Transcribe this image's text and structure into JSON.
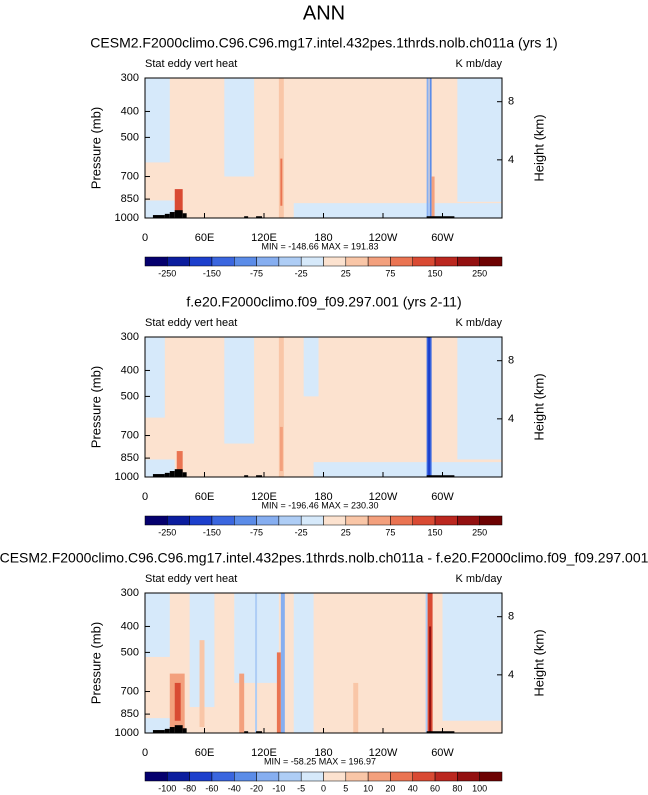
{
  "title": "ANN",
  "chart_data": [
    {
      "type": "contour",
      "title": "CESM2.F2000climo.C96.C96.mg17.intel.432pes.1thrds.nolb.ch011a (yrs 1)",
      "left_label": "Stat eddy vert heat",
      "right_label": "K mb/day",
      "ylabel": "Pressure (mb)",
      "y2label": "Height (km)",
      "yscale": "log",
      "ylim": [
        1000,
        300
      ],
      "yticks": [
        300,
        400,
        500,
        700,
        850,
        1000
      ],
      "y2lim": [
        0,
        9.63
      ],
      "y2ticks": [
        4,
        8
      ],
      "xlim": [
        0,
        360
      ],
      "xticks": [
        0,
        {
          "value": 60,
          "label": "60E"
        },
        {
          "value": 120,
          "label": "120E"
        },
        180,
        {
          "value": 240,
          "label": "120W"
        },
        {
          "value": 300,
          "label": "60W"
        }
      ],
      "stats": "MIN = -148.66  MAX = 191.83",
      "colorbar": {
        "colors": [
          "#05006e",
          "#0b1d9e",
          "#1c3fcc",
          "#3a66df",
          "#5b8ce8",
          "#86aef0",
          "#aecdf5",
          "#d6e9fa",
          "#fce2cf",
          "#f9c6a7",
          "#f3a07d",
          "#ea7452",
          "#d94a33",
          "#bb271f",
          "#931010",
          "#6d0202"
        ],
        "labels": [
          -250,
          -150,
          -75,
          -25,
          25,
          75,
          150,
          250
        ],
        "label_every": 2
      }
    },
    {
      "type": "contour",
      "title": "f.e20.F2000climo.f09_f09.297.001 (yrs 2-11)",
      "left_label": "Stat eddy vert heat",
      "right_label": "K mb/day",
      "ylabel": "Pressure (mb)",
      "y2label": "Height (km)",
      "yscale": "log",
      "ylim": [
        1000,
        300
      ],
      "yticks": [
        300,
        400,
        500,
        700,
        850,
        1000
      ],
      "y2lim": [
        0,
        9.63
      ],
      "y2ticks": [
        4,
        8
      ],
      "xlim": [
        0,
        360
      ],
      "xticks": [
        0,
        {
          "value": 60,
          "label": "60E"
        },
        {
          "value": 120,
          "label": "120E"
        },
        180,
        {
          "value": 240,
          "label": "120W"
        },
        {
          "value": 300,
          "label": "60W"
        }
      ],
      "stats": "MIN = -196.46  MAX = 230.30",
      "colorbar": {
        "colors": [
          "#05006e",
          "#0b1d9e",
          "#1c3fcc",
          "#3a66df",
          "#5b8ce8",
          "#86aef0",
          "#aecdf5",
          "#d6e9fa",
          "#fce2cf",
          "#f9c6a7",
          "#f3a07d",
          "#ea7452",
          "#d94a33",
          "#bb271f",
          "#931010",
          "#6d0202"
        ],
        "labels": [
          -250,
          -150,
          -75,
          -25,
          25,
          75,
          150,
          250
        ],
        "label_every": 2
      }
    },
    {
      "type": "contour",
      "title": "CESM2.F2000climo.C96.C96.mg17.intel.432pes.1thrds.nolb.ch011a - f.e20.F2000climo.f09_f09.297.001",
      "left_label": "Stat eddy vert heat",
      "right_label": "K mb/day",
      "ylabel": "Pressure (mb)",
      "y2label": "Height (km)",
      "yscale": "log",
      "ylim": [
        1000,
        300
      ],
      "yticks": [
        300,
        400,
        500,
        700,
        850,
        1000
      ],
      "y2lim": [
        0,
        9.63
      ],
      "y2ticks": [
        4,
        8
      ],
      "xlim": [
        0,
        360
      ],
      "xticks": [
        0,
        {
          "value": 60,
          "label": "60E"
        },
        {
          "value": 120,
          "label": "120E"
        },
        180,
        {
          "value": 240,
          "label": "120W"
        },
        {
          "value": 300,
          "label": "60W"
        }
      ],
      "stats": "MIN = -58.25  MAX = 196.97",
      "colorbar": {
        "colors": [
          "#05006e",
          "#0b1d9e",
          "#1c3fcc",
          "#3a66df",
          "#5b8ce8",
          "#86aef0",
          "#aecdf5",
          "#d6e9fa",
          "#fce2cf",
          "#f9c6a7",
          "#f3a07d",
          "#ea7452",
          "#d94a33",
          "#bb271f",
          "#931010",
          "#6d0202"
        ],
        "labels": [
          -100,
          -80,
          -60,
          -40,
          -20,
          -10,
          -5,
          0,
          5,
          10,
          20,
          40,
          60,
          80,
          100
        ],
        "label_every": 1
      }
    }
  ]
}
